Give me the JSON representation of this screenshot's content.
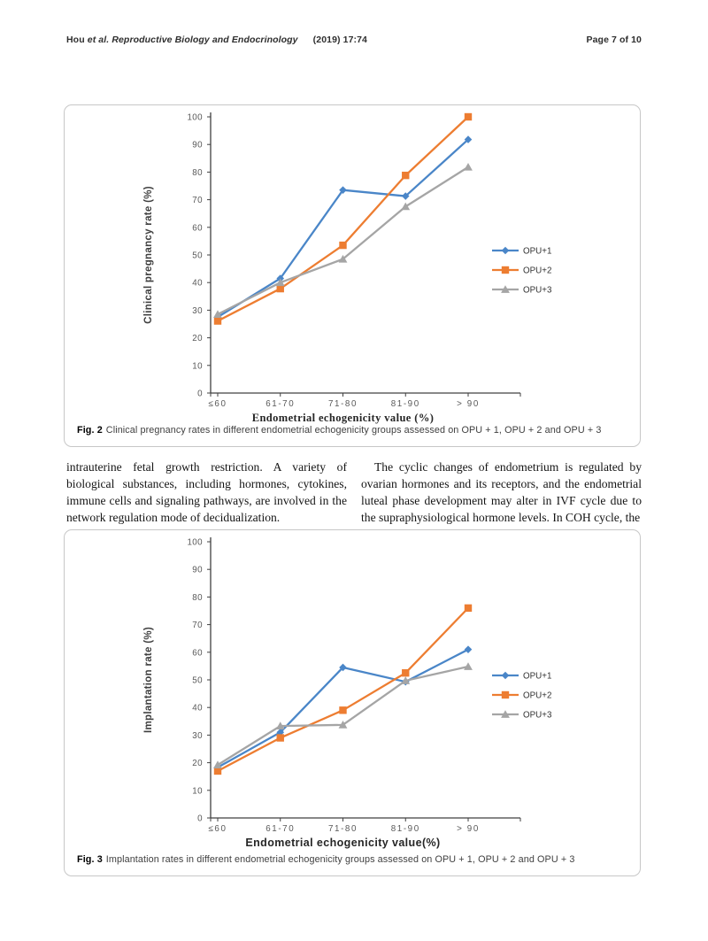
{
  "header": {
    "authors": "Hou",
    "et_al": "et al.",
    "journal": "Reproductive Biology and Endocrinology",
    "citation": "(2019) 17:74",
    "page_label": "Page 7 of 10"
  },
  "body_text": {
    "left_column": "intrauterine fetal growth restriction. A variety of biological substances, including hormones, cytokines, immune cells and signaling pathways, are involved in the network regulation mode of decidualization.",
    "right_column": "The cyclic changes of endometrium is regulated by ovarian hormones and its receptors, and the endometrial luteal phase development may alter in IVF cycle due to the supraphysiological hormone levels. In COH cycle, the"
  },
  "figures": [
    {
      "caption_label": "Fig. 2",
      "caption_text": "Clinical pregnancy rates in different endometrial echogenicity groups assessed on OPU + 1, OPU + 2 and OPU + 3"
    },
    {
      "caption_label": "Fig. 3",
      "caption_text": "Implantation rates in different endometrial echogenicity groups assessed on OPU + 1, OPU + 2 and OPU + 3"
    }
  ],
  "chart_data": [
    {
      "type": "line",
      "title": "",
      "categories": [
        "≤60",
        "61-70",
        "71-80",
        "81-90",
        "> 90"
      ],
      "series": [
        {
          "name": "OPU+1",
          "marker": "diamond",
          "color": "#4A86C8",
          "values": [
            27.5,
            41.5,
            73.5,
            71.3,
            91.8
          ]
        },
        {
          "name": "OPU+2",
          "marker": "square",
          "color": "#ED7D31",
          "values": [
            26.1,
            37.8,
            53.5,
            78.8,
            100
          ]
        },
        {
          "name": "OPU+3",
          "marker": "triangle",
          "color": "#A5A5A5",
          "values": [
            28.5,
            40.0,
            48.5,
            67.5,
            81.8
          ]
        }
      ],
      "xlabel": "Endometrial  echogenicity value (%)",
      "ylabel": "Clinical pregnancy rate (%)",
      "ylim": [
        0,
        100
      ],
      "ytick_step": 10,
      "grid": false,
      "legend_position": "right",
      "xlabel_style": "serif"
    },
    {
      "type": "line",
      "title": "",
      "categories": [
        "≤60",
        "61-70",
        "71-80",
        "81-90",
        "> 90"
      ],
      "series": [
        {
          "name": "OPU+1",
          "marker": "diamond",
          "color": "#4A86C8",
          "values": [
            18.3,
            31.0,
            54.5,
            49.3,
            61.0
          ]
        },
        {
          "name": "OPU+2",
          "marker": "square",
          "color": "#ED7D31",
          "values": [
            17.0,
            29.0,
            39.0,
            52.5,
            76.0
          ]
        },
        {
          "name": "OPU+3",
          "marker": "triangle",
          "color": "#A5A5A5",
          "values": [
            19.2,
            33.3,
            33.7,
            49.7,
            54.8
          ]
        }
      ],
      "xlabel": "Endometrial  echogenicity value(%)",
      "ylabel": "Implantation rate (%)",
      "ylim": [
        0,
        100
      ],
      "ytick_step": 10,
      "grid": false,
      "legend_position": "right",
      "xlabel_style": "sans"
    }
  ]
}
